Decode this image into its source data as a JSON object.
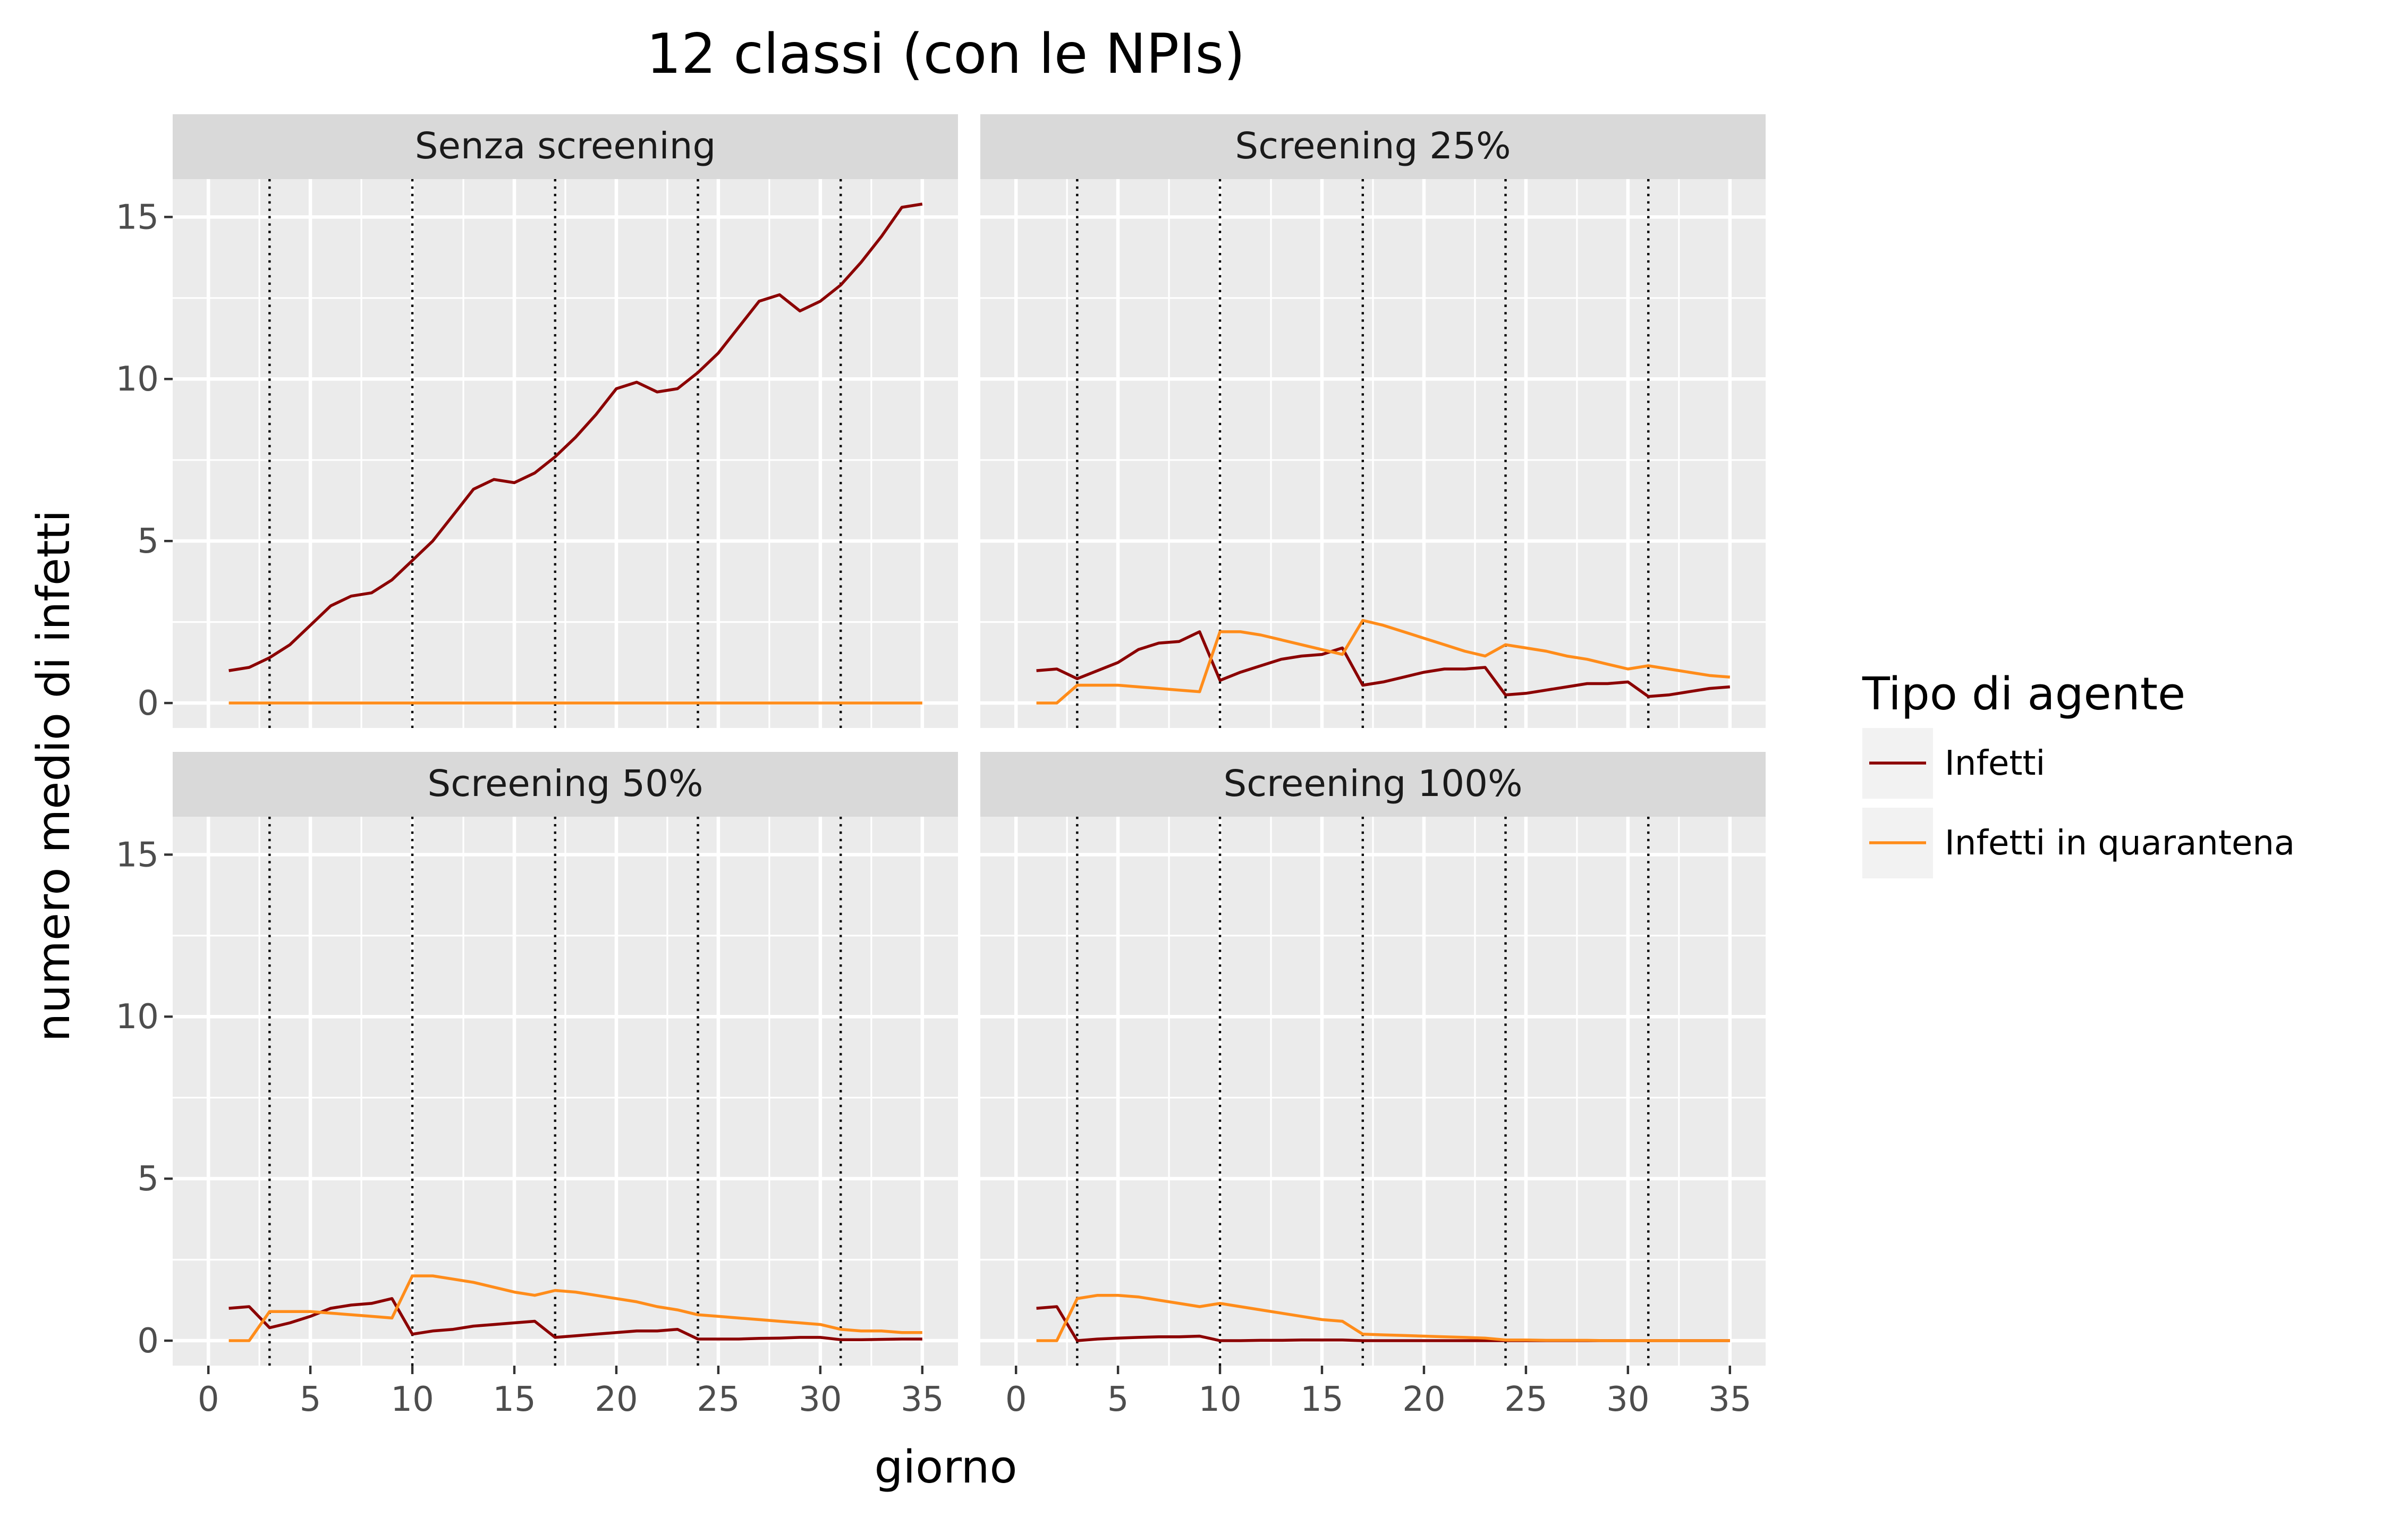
{
  "chart_data": {
    "type": "line",
    "title": "12 classi (con le NPIs)",
    "xlabel": "giorno",
    "ylabel": "numero medio di infetti",
    "xlim": [
      0,
      35
    ],
    "ylim": [
      0,
      15
    ],
    "x_ticks": [
      0,
      5,
      10,
      15,
      20,
      25,
      30,
      35
    ],
    "y_ticks": [
      0,
      5,
      10,
      15
    ],
    "vlines": [
      3,
      10,
      17,
      24,
      31
    ],
    "grid": true,
    "legend": {
      "title": "Tipo di agente",
      "position": "right",
      "entries": [
        {
          "label": "Infetti",
          "color": "#8b0000"
        },
        {
          "label": "Infetti in quarantena",
          "color": "#ff8c1a"
        }
      ]
    },
    "x": [
      1,
      2,
      3,
      4,
      5,
      6,
      7,
      8,
      9,
      10,
      11,
      12,
      13,
      14,
      15,
      16,
      17,
      18,
      19,
      20,
      21,
      22,
      23,
      24,
      25,
      26,
      27,
      28,
      29,
      30,
      31,
      32,
      33,
      34,
      35
    ],
    "panels": [
      {
        "label": "Senza screening",
        "series": [
          {
            "name": "Infetti",
            "color": "#8b0000",
            "values": [
              1.0,
              1.1,
              1.4,
              1.8,
              2.4,
              3.0,
              3.3,
              3.4,
              3.8,
              4.4,
              5.0,
              5.8,
              6.6,
              6.9,
              6.8,
              7.1,
              7.6,
              8.2,
              8.9,
              9.7,
              9.9,
              9.6,
              9.7,
              10.2,
              10.8,
              11.6,
              12.4,
              12.6,
              12.1,
              12.4,
              12.9,
              13.6,
              14.4,
              15.3,
              15.4
            ]
          },
          {
            "name": "Infetti in quarantena",
            "color": "#ff8c1a",
            "values": [
              0,
              0,
              0,
              0,
              0,
              0,
              0,
              0,
              0,
              0,
              0,
              0,
              0,
              0,
              0,
              0,
              0,
              0,
              0,
              0,
              0,
              0,
              0,
              0,
              0,
              0,
              0,
              0,
              0,
              0,
              0,
              0,
              0,
              0,
              0
            ]
          }
        ]
      },
      {
        "label": "Screening 25%",
        "series": [
          {
            "name": "Infetti",
            "color": "#8b0000",
            "values": [
              1.0,
              1.05,
              0.75,
              1.0,
              1.25,
              1.65,
              1.85,
              1.9,
              2.2,
              0.7,
              0.95,
              1.15,
              1.35,
              1.45,
              1.5,
              1.7,
              0.55,
              0.65,
              0.8,
              0.95,
              1.05,
              1.05,
              1.1,
              0.25,
              0.3,
              0.4,
              0.5,
              0.6,
              0.6,
              0.65,
              0.2,
              0.25,
              0.35,
              0.45,
              0.5
            ]
          },
          {
            "name": "Infetti in quarantena",
            "color": "#ff8c1a",
            "values": [
              0.0,
              0.0,
              0.55,
              0.55,
              0.55,
              0.5,
              0.45,
              0.4,
              0.35,
              2.2,
              2.2,
              2.1,
              1.95,
              1.8,
              1.65,
              1.5,
              2.55,
              2.4,
              2.2,
              2.0,
              1.8,
              1.6,
              1.45,
              1.8,
              1.7,
              1.6,
              1.45,
              1.35,
              1.2,
              1.05,
              1.15,
              1.05,
              0.95,
              0.85,
              0.8
            ]
          }
        ]
      },
      {
        "label": "Screening 50%",
        "series": [
          {
            "name": "Infetti",
            "color": "#8b0000",
            "values": [
              1.0,
              1.05,
              0.4,
              0.55,
              0.75,
              1.0,
              1.1,
              1.15,
              1.3,
              0.2,
              0.3,
              0.35,
              0.45,
              0.5,
              0.55,
              0.6,
              0.1,
              0.15,
              0.2,
              0.25,
              0.3,
              0.3,
              0.35,
              0.05,
              0.05,
              0.05,
              0.07,
              0.08,
              0.1,
              0.1,
              0.03,
              0.03,
              0.04,
              0.05,
              0.05
            ]
          },
          {
            "name": "Infetti in quarantena",
            "color": "#ff8c1a",
            "values": [
              0.0,
              0.0,
              0.9,
              0.9,
              0.9,
              0.85,
              0.8,
              0.75,
              0.7,
              2.0,
              2.0,
              1.9,
              1.8,
              1.65,
              1.5,
              1.4,
              1.55,
              1.5,
              1.4,
              1.3,
              1.2,
              1.05,
              0.95,
              0.8,
              0.75,
              0.7,
              0.65,
              0.6,
              0.55,
              0.5,
              0.35,
              0.3,
              0.3,
              0.25,
              0.25
            ]
          }
        ]
      },
      {
        "label": "Screening 100%",
        "series": [
          {
            "name": "Infetti",
            "color": "#8b0000",
            "values": [
              1.0,
              1.05,
              0.0,
              0.05,
              0.08,
              0.1,
              0.12,
              0.12,
              0.14,
              0.0,
              0.0,
              0.01,
              0.01,
              0.02,
              0.02,
              0.02,
              0.0,
              0.0,
              0.0,
              0.0,
              0.0,
              0.0,
              0.0,
              0.0,
              0.0,
              0.0,
              0.0,
              0.0,
              0.0,
              0.0,
              0.0,
              0.0,
              0.0,
              0.0,
              0.0
            ]
          },
          {
            "name": "Infetti in quarantena",
            "color": "#ff8c1a",
            "values": [
              0.0,
              0.0,
              1.3,
              1.4,
              1.4,
              1.35,
              1.25,
              1.15,
              1.05,
              1.15,
              1.05,
              0.95,
              0.85,
              0.75,
              0.65,
              0.6,
              0.2,
              0.18,
              0.16,
              0.14,
              0.12,
              0.1,
              0.08,
              0.02,
              0.02,
              0.01,
              0.01,
              0.01,
              0.0,
              0.0,
              0.0,
              0.0,
              0.0,
              0.0,
              0.0
            ]
          }
        ]
      }
    ]
  }
}
